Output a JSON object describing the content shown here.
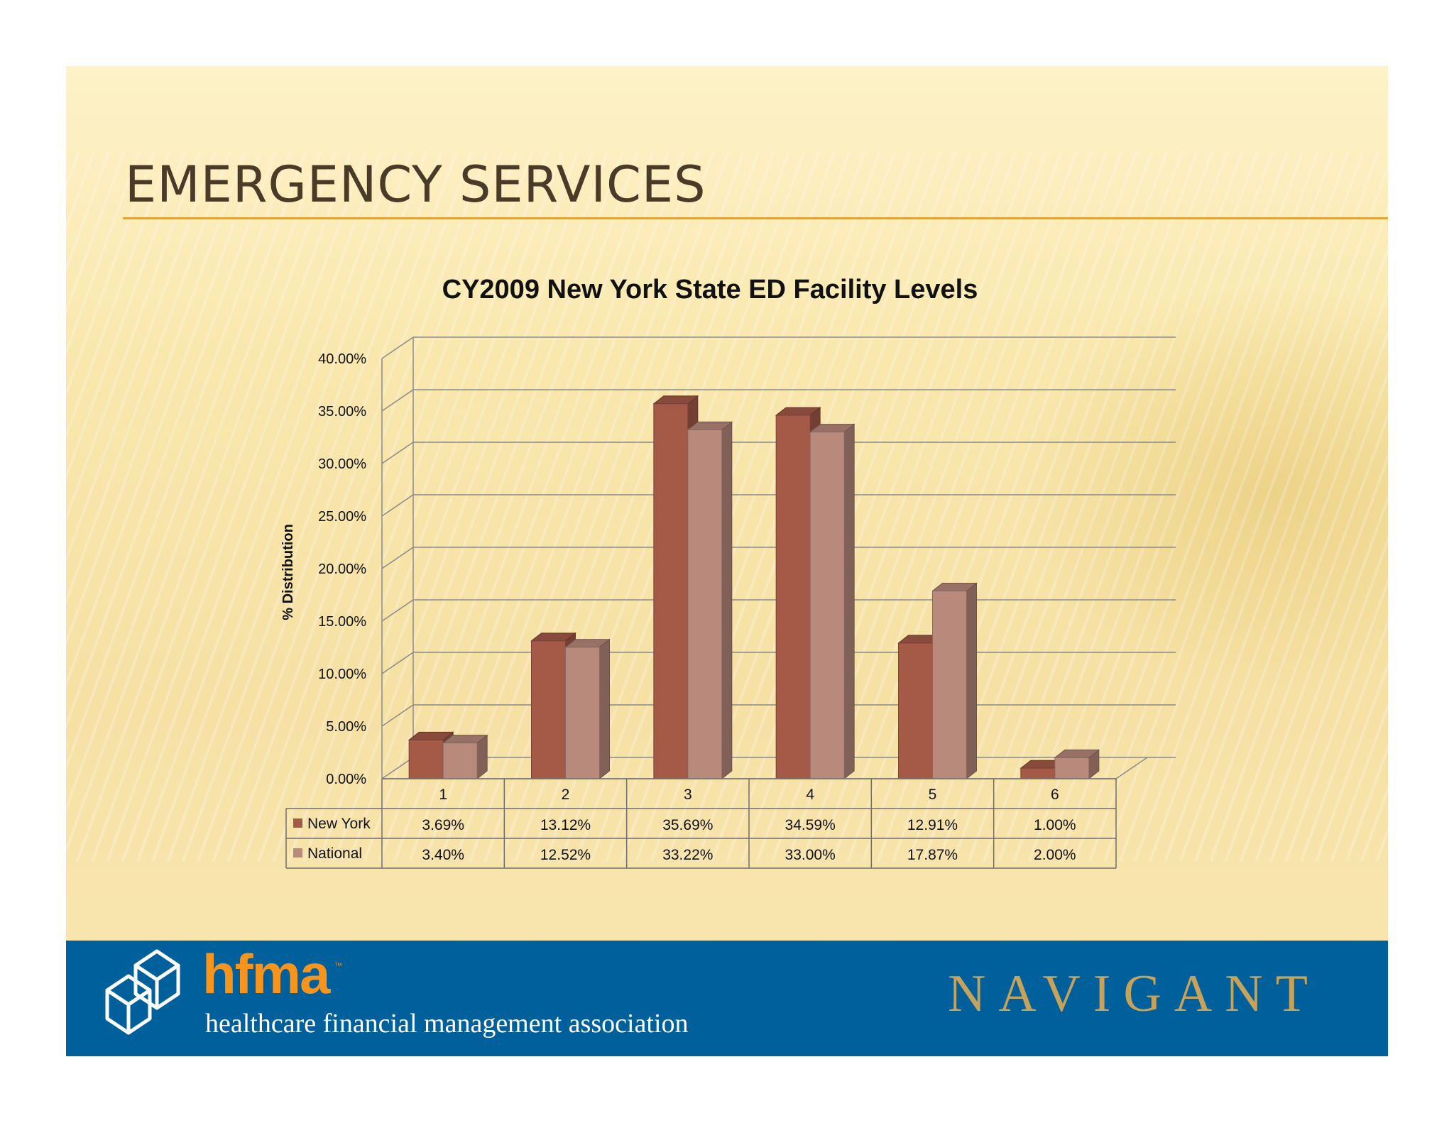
{
  "slide": {
    "title": "EMERGENCY SERVICES"
  },
  "chart_data": {
    "type": "bar",
    "title": "CY2009 New York State ED Facility Levels",
    "xlabel": "",
    "ylabel": "% Distribution",
    "ylim": [
      0,
      40
    ],
    "y_ticks": [
      "0.00%",
      "5.00%",
      "10.00%",
      "15.00%",
      "20.00%",
      "25.00%",
      "30.00%",
      "35.00%",
      "40.00%"
    ],
    "categories": [
      "1",
      "2",
      "3",
      "4",
      "5",
      "6"
    ],
    "series": [
      {
        "name": "New York",
        "values": [
          3.69,
          13.12,
          35.69,
          34.59,
          12.91,
          1.0
        ],
        "labels": [
          "3.69%",
          "13.12%",
          "35.69%",
          "34.59%",
          "12.91%",
          "1.00%"
        ],
        "color": "#a55a48"
      },
      {
        "name": "National",
        "values": [
          3.4,
          12.52,
          33.22,
          33.0,
          17.87,
          2.0
        ],
        "labels": [
          "3.40%",
          "12.52%",
          "33.22%",
          "33.00%",
          "17.87%",
          "2.00%"
        ],
        "color": "#b88a7c"
      }
    ],
    "grid": true,
    "legend": "data-table"
  },
  "footer": {
    "org_acronym": "hfma",
    "org_tm": "™",
    "org_name": "healthcare financial management association",
    "partner": "NAVIGANT"
  }
}
